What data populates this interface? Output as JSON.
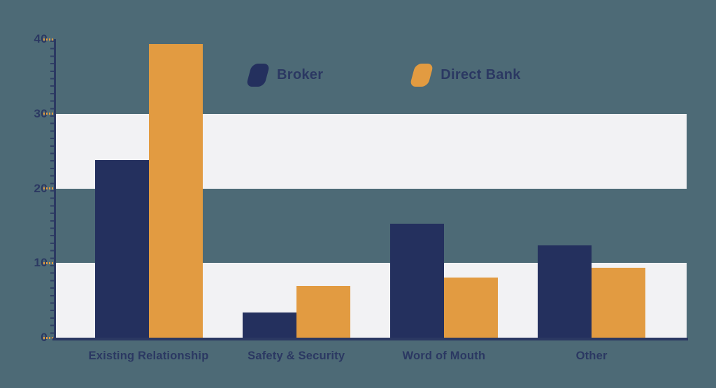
{
  "colors": {
    "background": "#4D6A76",
    "band": "#F2F2F4",
    "axis": "#2B3862",
    "tick_dash": "#E29B41",
    "label_text": "#2B3862",
    "broker": "#24305E",
    "direct_bank": "#E29B41"
  },
  "chart_data": {
    "type": "bar",
    "title": "",
    "xlabel": "",
    "ylabel": "",
    "categories": [
      "Existing Relationship",
      "Safety & Security",
      "Word of Mouth",
      "Other"
    ],
    "series": [
      {
        "name": "Broker",
        "color": "#24305E",
        "values": [
          23.8,
          3.4,
          15.3,
          12.4
        ]
      },
      {
        "name": "Direct Bank",
        "color": "#E29B41",
        "values": [
          39.3,
          6.9,
          8.1,
          9.4
        ]
      }
    ],
    "ylim": [
      0,
      40
    ],
    "yticks": [
      0,
      10,
      20,
      30,
      40
    ],
    "grid": "zebra-bands",
    "band_ranges": [
      [
        0,
        10
      ],
      [
        20,
        30
      ]
    ],
    "legend_position": "top-center"
  }
}
